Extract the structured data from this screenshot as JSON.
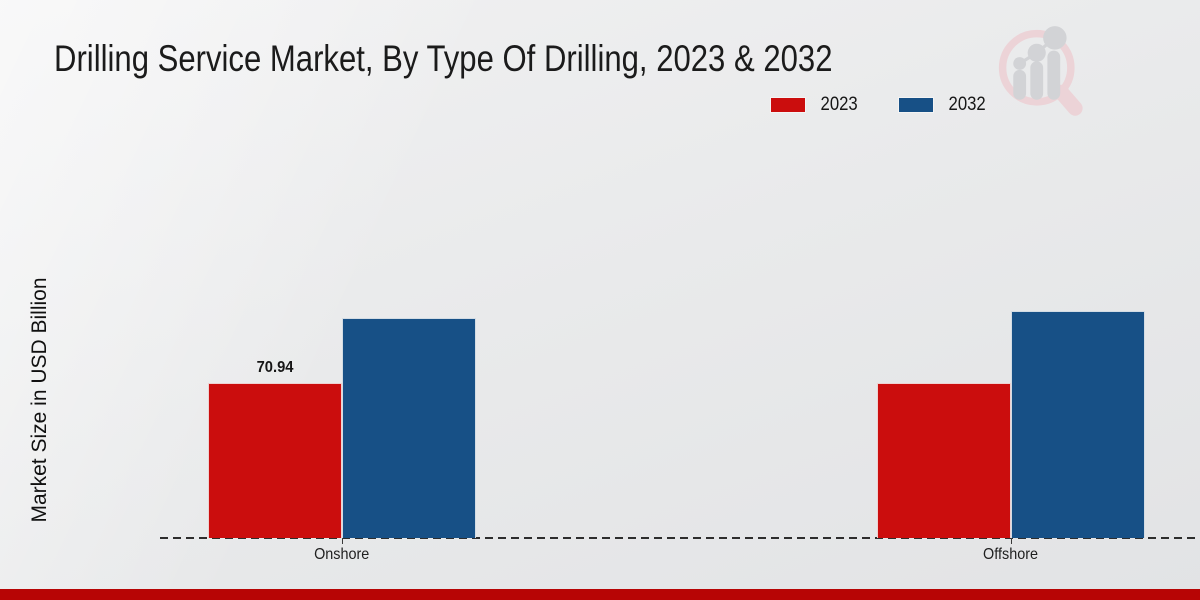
{
  "page_title": "Drilling Service Market, By Type Of Drilling, 2023 & 2032",
  "chart_data": {
    "type": "bar",
    "title": "Drilling Service Market, By Type Of Drilling, 2023 & 2032",
    "xlabel": "",
    "ylabel": "Market Size in USD Billion",
    "categories": [
      "Onshore",
      "Offshore"
    ],
    "series": [
      {
        "name": "2023",
        "color": "#cb0d0d",
        "values": [
          70.94,
          70.9
        ]
      },
      {
        "name": "2032",
        "color": "#175086",
        "values": [
          100.6,
          103.8
        ]
      }
    ],
    "data_labels": [
      {
        "series": "2023",
        "category": "Onshore",
        "text": "70.94"
      }
    ],
    "ylim": [
      0,
      110
    ],
    "grid": false,
    "legend_position": "top-right",
    "x_axis_style": "dashed-line",
    "y_axis_ticks_visible": false
  },
  "legend": {
    "items": [
      {
        "label": "2023",
        "color": "#cb0d0d"
      },
      {
        "label": "2032",
        "color": "#175086"
      }
    ]
  },
  "branding": {
    "logo_name": "magnifier-bar-chart-logo",
    "logo_circle_color": "#ecd3d7",
    "logo_bars_color": "#d2d3d6"
  },
  "colors": {
    "background": "#e9eaeb",
    "title_text": "#1b1b1b",
    "axis_line": "#2d2d2d",
    "footer_strip": "#b70505"
  }
}
